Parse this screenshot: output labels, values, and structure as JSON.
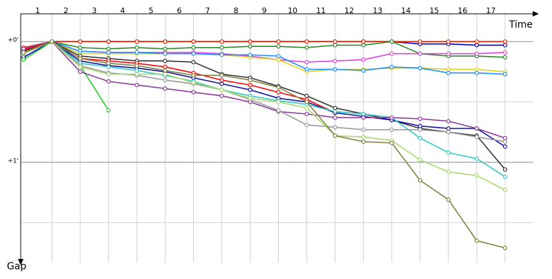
{
  "chart_data": {
    "type": "line",
    "x_label": "Time",
    "y_label": "Gap",
    "x": [
      0,
      1,
      2,
      3,
      4,
      5,
      6,
      7,
      8,
      9,
      10,
      11,
      12,
      13,
      14,
      15,
      16,
      17
    ],
    "xlim": [
      -0.1,
      18
    ],
    "xticks": [
      1,
      2,
      3,
      4,
      5,
      6,
      7,
      8,
      9,
      10,
      11,
      12,
      13,
      14,
      15,
      16,
      17
    ],
    "ylim": [
      -0.23,
      1.83
    ],
    "y_inverted": true,
    "yticks": [
      {
        "value": 0,
        "label": "+0'"
      },
      {
        "value": 1,
        "label": "+1'"
      }
    ],
    "minor_yticks": [
      0.5,
      1.5
    ],
    "grid": true,
    "series": [
      {
        "color": "#0000cc",
        "values": [
          0.13,
          0,
          0,
          0,
          0,
          0,
          0,
          0,
          0,
          0,
          0,
          0,
          0,
          0,
          0.02,
          0.02,
          0.03,
          0.03
        ]
      },
      {
        "color": "#ee2200",
        "values": [
          0.05,
          0,
          0,
          0,
          0,
          0,
          0,
          0,
          0,
          0,
          0,
          0,
          0,
          0,
          0,
          0,
          0,
          0
        ]
      },
      {
        "color": "#2a8a2a",
        "values": [
          0.1,
          0,
          0.05,
          0.06,
          0.05,
          0.06,
          0.05,
          0.05,
          0.04,
          0.04,
          0.05,
          0.03,
          0.03,
          0,
          0.1,
          0.12,
          0.12,
          0.13
        ]
      },
      {
        "color": "#e040e0",
        "values": [
          0.08,
          0,
          0.08,
          0.09,
          0.09,
          0.09,
          0.09,
          0.1,
          0.12,
          0.15,
          0.17,
          0.16,
          0.15,
          0.1,
          0.1,
          0.1,
          0.1,
          0.09
        ]
      },
      {
        "color": "#e0d020",
        "values": [
          0.07,
          0,
          0.1,
          0.1,
          0.1,
          0.1,
          0.1,
          0.11,
          0.13,
          0.15,
          0.25,
          0.23,
          0.23,
          0.22,
          0.22,
          0.23,
          0.23,
          0.25
        ]
      },
      {
        "color": "#1e90ff",
        "values": [
          0.09,
          0,
          0.08,
          0.09,
          0.09,
          0.1,
          0.1,
          0.11,
          0.11,
          0.12,
          0.23,
          0.23,
          0.24,
          0.21,
          0.22,
          0.26,
          0.26,
          0.27
        ]
      },
      {
        "color": "#22cc22",
        "values": [
          0.15,
          0,
          0.2,
          0.57,
          null,
          null,
          null,
          null,
          null,
          null,
          null,
          null,
          null,
          null,
          null,
          null,
          null,
          null
        ]
      },
      {
        "color": "#333333",
        "values": [
          0.08,
          0,
          0.12,
          0.14,
          0.16,
          0.16,
          0.17,
          0.27,
          0.3,
          0.37,
          0.45,
          0.55,
          0.6,
          0.65,
          0.72,
          0.75,
          0.78,
          1.06
        ]
      },
      {
        "color": "#ff0000",
        "values": [
          0.07,
          0,
          0.14,
          0.16,
          0.18,
          0.21,
          0.26,
          0.32,
          0.36,
          0.42,
          0.48,
          0.59,
          null,
          null,
          null,
          null,
          null,
          null
        ]
      },
      {
        "color": "#1010a0",
        "values": [
          0.1,
          0,
          0.16,
          0.2,
          0.22,
          0.25,
          0.3,
          0.35,
          0.4,
          0.47,
          0.5,
          0.59,
          0.62,
          0.65,
          0.7,
          0.72,
          0.72,
          0.87
        ]
      },
      {
        "color": "#30c8c8",
        "values": [
          0.1,
          0,
          0.18,
          0.21,
          0.24,
          0.28,
          0.33,
          0.4,
          0.45,
          0.49,
          0.52,
          0.58,
          0.6,
          0.63,
          0.8,
          0.92,
          0.97,
          1.12
        ]
      },
      {
        "color": "#8b3a9b",
        "values": [
          0.06,
          0,
          0.25,
          0.33,
          0.36,
          0.39,
          0.42,
          0.45,
          0.5,
          0.58,
          0.6,
          0.63,
          0.63,
          0.63,
          0.64,
          0.66,
          0.72,
          0.8
        ]
      },
      {
        "color": "#999999",
        "values": [
          0.1,
          0,
          0.2,
          0.26,
          0.28,
          0.32,
          0.35,
          0.4,
          0.48,
          0.57,
          0.69,
          0.71,
          0.73,
          0.73,
          0.73,
          0.75,
          0.79,
          0.83
        ]
      },
      {
        "color": "#a8d870",
        "values": [
          0.1,
          0,
          0.21,
          0.27,
          0.27,
          0.27,
          0.34,
          0.4,
          0.47,
          0.5,
          0.55,
          0.78,
          0.79,
          0.82,
          0.98,
          1.08,
          1.11,
          1.23
        ]
      },
      {
        "color": "#808040",
        "values": [
          0.09,
          0,
          0.14,
          0.18,
          0.2,
          0.24,
          0.28,
          0.28,
          0.32,
          0.38,
          0.5,
          0.78,
          0.83,
          0.84,
          1.15,
          1.31,
          1.65,
          1.71
        ]
      }
    ]
  }
}
